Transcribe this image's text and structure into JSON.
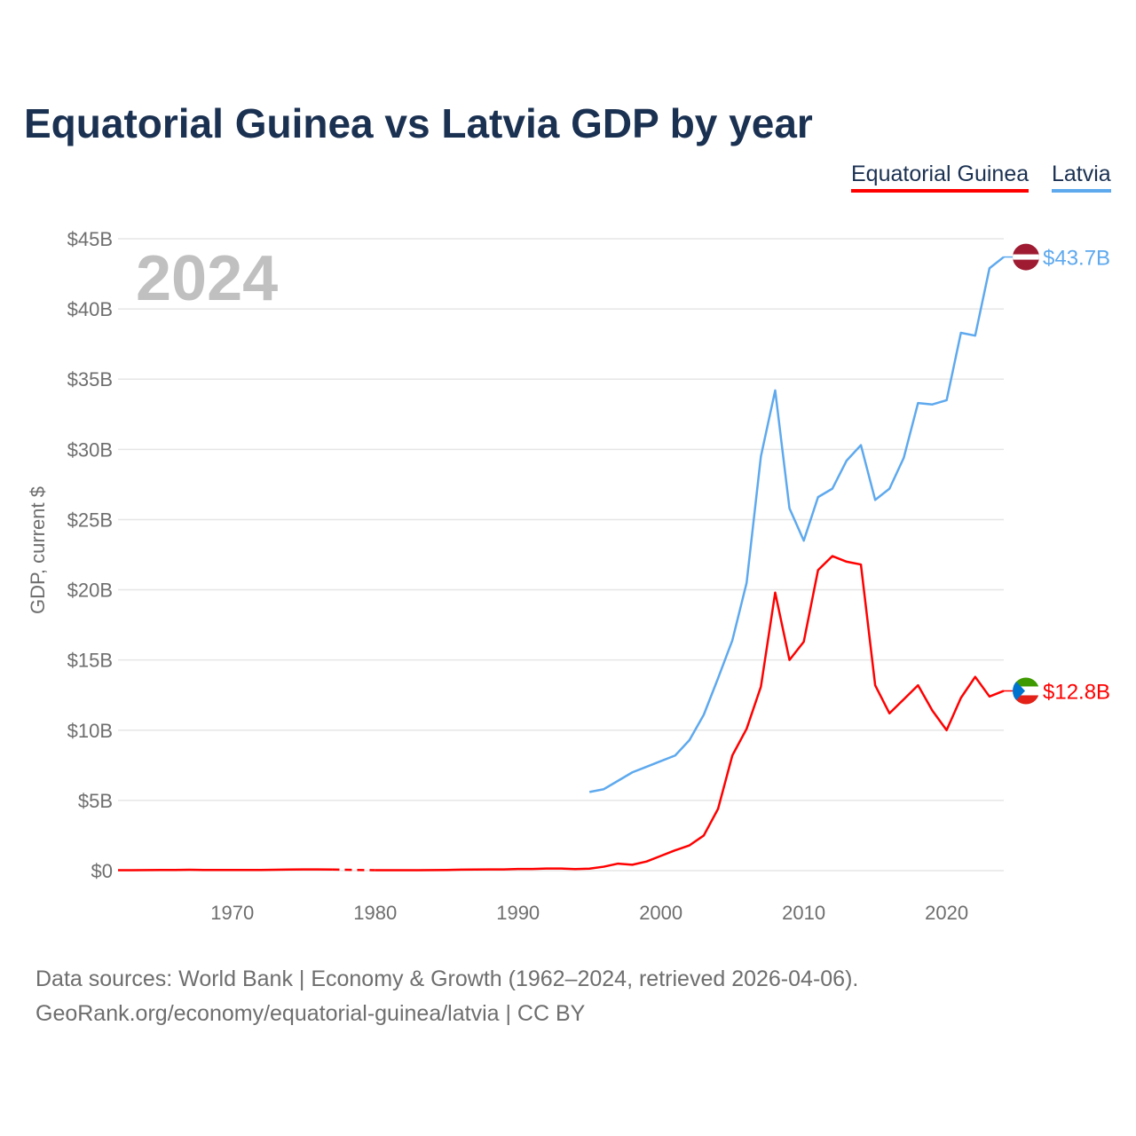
{
  "title": "Equatorial Guinea vs Latvia GDP by year",
  "legend": [
    "Equatorial Guinea",
    "Latvia"
  ],
  "year_label": "2024",
  "source_line1": "Data sources: World Bank | Economy & Growth (1962–2024, retrieved 2026-04-06).",
  "source_line2": "GeoRank.org/economy/equatorial-guinea/latvia | CC BY",
  "chart_data": {
    "type": "line",
    "title": "Equatorial Guinea vs Latvia GDP by year",
    "xlabel": "",
    "ylabel": "GDP, current $",
    "xlim": [
      1962,
      2024
    ],
    "ylim": [
      0,
      45
    ],
    "xticks": [
      1970,
      1980,
      1990,
      2000,
      2010,
      2020
    ],
    "yticks": [
      0,
      5,
      10,
      15,
      20,
      25,
      30,
      35,
      40,
      45
    ],
    "ytick_labels": [
      "$0",
      "$5B",
      "$10B",
      "$15B",
      "$20B",
      "$25B",
      "$30B",
      "$35B",
      "$40B",
      "$45B"
    ],
    "grid": true,
    "legend_position": "top-right",
    "series": [
      {
        "name": "Equatorial Guinea",
        "color": "#ff0000",
        "end_label": "$12.8B",
        "x": [
          1962,
          1963,
          1964,
          1965,
          1966,
          1967,
          1968,
          1969,
          1970,
          1971,
          1972,
          1973,
          1974,
          1975,
          1976,
          1977,
          1980,
          1981,
          1982,
          1983,
          1984,
          1985,
          1986,
          1987,
          1988,
          1989,
          1990,
          1991,
          1992,
          1993,
          1994,
          1995,
          1996,
          1997,
          1998,
          1999,
          2000,
          2001,
          2002,
          2003,
          2004,
          2005,
          2006,
          2007,
          2008,
          2009,
          2010,
          2011,
          2012,
          2013,
          2014,
          2015,
          2016,
          2017,
          2018,
          2019,
          2020,
          2021,
          2022,
          2023,
          2024
        ],
        "y": [
          0.03,
          0.03,
          0.04,
          0.05,
          0.05,
          0.06,
          0.05,
          0.05,
          0.05,
          0.05,
          0.05,
          0.06,
          0.08,
          0.09,
          0.09,
          0.08,
          0.03,
          0.03,
          0.03,
          0.03,
          0.04,
          0.05,
          0.07,
          0.08,
          0.09,
          0.09,
          0.12,
          0.12,
          0.15,
          0.15,
          0.11,
          0.14,
          0.28,
          0.5,
          0.42,
          0.65,
          1.05,
          1.45,
          1.8,
          2.5,
          4.4,
          8.2,
          10.1,
          13.1,
          19.8,
          15.0,
          16.3,
          21.4,
          22.4,
          22.0,
          21.8,
          13.2,
          11.2,
          12.2,
          13.2,
          11.4,
          10.0,
          12.3,
          13.8,
          12.4,
          12.8
        ],
        "gap": [
          1977,
          1980
        ]
      },
      {
        "name": "Latvia",
        "color": "#5ea9ee",
        "end_label": "$43.7B",
        "x": [
          1995,
          1996,
          1997,
          1998,
          1999,
          2000,
          2001,
          2002,
          2003,
          2004,
          2005,
          2006,
          2007,
          2008,
          2009,
          2010,
          2011,
          2012,
          2013,
          2014,
          2015,
          2016,
          2017,
          2018,
          2019,
          2020,
          2021,
          2022,
          2023,
          2024
        ],
        "y": [
          5.6,
          5.8,
          6.4,
          7.0,
          7.4,
          7.8,
          8.2,
          9.3,
          11.1,
          13.7,
          16.4,
          20.5,
          29.5,
          34.2,
          25.8,
          23.5,
          26.6,
          27.2,
          29.2,
          30.3,
          26.4,
          27.2,
          29.4,
          33.3,
          33.2,
          33.5,
          38.3,
          38.1,
          42.9,
          43.7
        ]
      }
    ]
  }
}
